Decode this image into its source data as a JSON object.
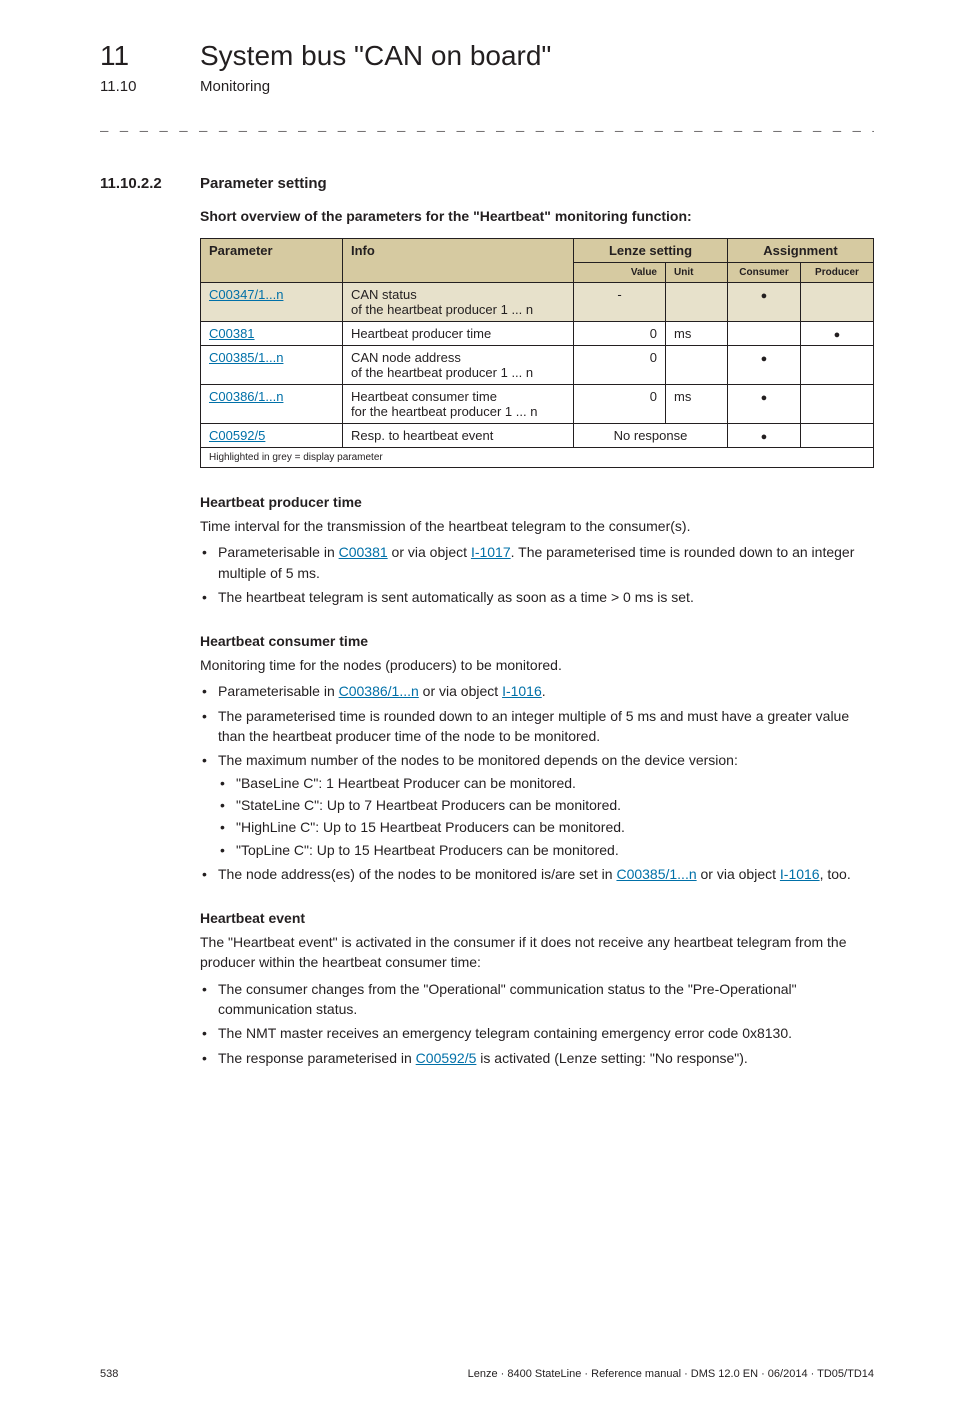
{
  "chapter": {
    "num": "11",
    "title": "System bus \"CAN on board\""
  },
  "subsection": {
    "num": "11.10",
    "title": "Monitoring"
  },
  "dashes": "_ _ _ _ _ _ _ _ _ _ _ _ _ _ _ _ _ _ _ _ _ _ _ _ _ _ _ _ _ _ _ _ _ _ _ _ _ _ _ _ _ _ _ _ _ _ _ _ _ _ _ _ _ _ _ _ _ _ _ _ _ _ _ _",
  "section": {
    "num": "11.10.2.2",
    "title": "Parameter setting"
  },
  "lead": "Short overview of the parameters for the \"Heartbeat\" monitoring function:",
  "table": {
    "headers": {
      "param": "Parameter",
      "info": "Info",
      "lenze": "Lenze setting",
      "assign": "Assignment"
    },
    "subheaders": {
      "value": "Value",
      "unit": "Unit",
      "consumer": "Consumer",
      "producer": "Producer"
    },
    "rows": [
      {
        "param": "C00347/1...n",
        "param_link": true,
        "info": "CAN status\nof the heartbeat producer 1 ... n",
        "value": "-",
        "unit": "",
        "consumer": true,
        "producer": false,
        "grey": true
      },
      {
        "param": "C00381",
        "param_link": true,
        "info": "Heartbeat producer time",
        "value": "0",
        "unit": "ms",
        "consumer": false,
        "producer": true,
        "grey": false
      },
      {
        "param": "C00385/1...n",
        "param_link": true,
        "info": "CAN node address\nof the heartbeat producer 1 ... n",
        "value": "0",
        "unit": "",
        "consumer": true,
        "producer": false,
        "grey": false
      },
      {
        "param": "C00386/1...n",
        "param_link": true,
        "info": "Heartbeat consumer time\nfor the heartbeat producer 1 ... n",
        "value": "0",
        "unit": "ms",
        "consumer": true,
        "producer": false,
        "grey": false
      },
      {
        "param": "C00592/5",
        "param_link": true,
        "info": "Resp. to heartbeat event",
        "value_span": "No response",
        "consumer": true,
        "producer": false,
        "grey": false
      }
    ],
    "footnote": "Highlighted in grey = display parameter"
  },
  "sections": {
    "hpt": {
      "title": "Heartbeat producer time",
      "body": "Time interval for the transmission of the heartbeat telegram to the consumer(s).",
      "b1_pre": "Parameterisable in ",
      "b1_l1": "C00381",
      "b1_mid": " or via object ",
      "b1_l2": "I-1017",
      "b1_post": ". The parameterised time is rounded down to an integer multiple of 5 ms.",
      "b2": "The heartbeat telegram is sent automatically as soon as a time > 0 ms is set."
    },
    "hct": {
      "title": "Heartbeat consumer time",
      "body": "Monitoring time for the nodes (producers) to be monitored.",
      "b1_pre": "Parameterisable in ",
      "b1_l1": "C00386/1...n",
      "b1_mid": " or via object ",
      "b1_l2": "I-1016",
      "b1_post": ".",
      "b2": "The parameterised time is rounded down to an integer multiple of 5 ms and must have a greater value than the heartbeat producer time of the node to be monitored.",
      "b3": "The maximum number of the nodes to be monitored depends on the device version:",
      "b3s1": "\"BaseLine C\": 1 Heartbeat Producer can be monitored.",
      "b3s2": "\"StateLine C\": Up to 7 Heartbeat Producers can be monitored.",
      "b3s3": "\"HighLine C\": Up to 15 Heartbeat Producers can be monitored.",
      "b3s4": "\"TopLine C\": Up to 15 Heartbeat Producers can be monitored.",
      "b4_pre": "The node address(es) of the nodes to be monitored is/are set in ",
      "b4_l1": "C00385/1...n",
      "b4_mid": " or via object ",
      "b4_l2": "I-1016",
      "b4_post": ", too."
    },
    "he": {
      "title": "Heartbeat event",
      "body": "The \"Heartbeat event\" is activated in the consumer if it does not receive any heartbeat telegram from the producer within the heartbeat consumer time:",
      "b1": "The consumer changes from the \"Operational\" communication status to the \"Pre-Operational\" communication status.",
      "b2": "The NMT master receives an emergency telegram containing emergency error code 0x8130.",
      "b3_pre": "The response parameterised in ",
      "b3_l1": "C00592/5",
      "b3_post": " is activated (Lenze setting: \"No response\")."
    }
  },
  "footer": {
    "page": "538",
    "text": "Lenze · 8400 StateLine · Reference manual · DMS 12.0 EN · 06/2014 · TD05/TD14"
  }
}
